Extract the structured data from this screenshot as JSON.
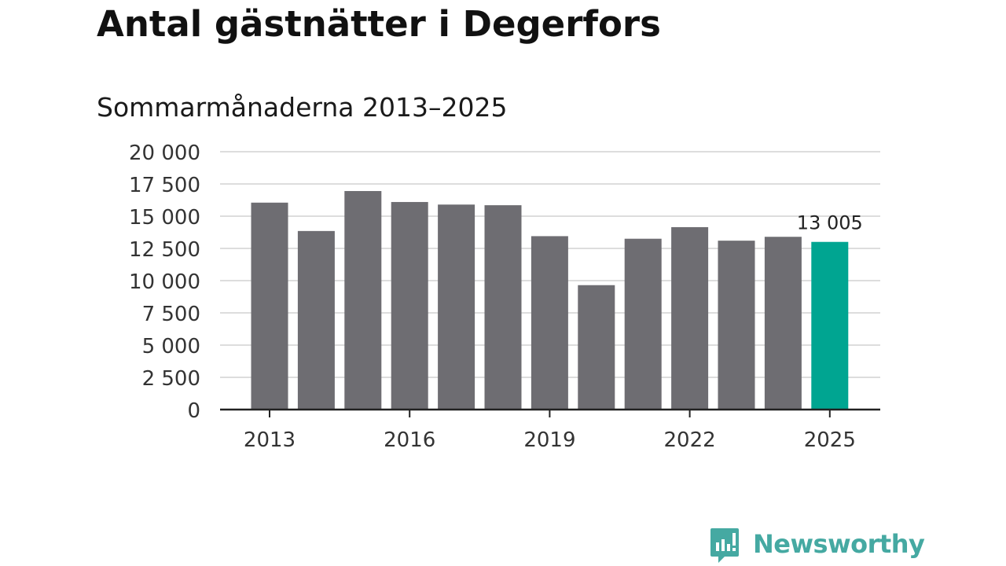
{
  "title": "Antal gästnätter i Degerfors",
  "subtitle": "Sommarmånaderna 2013–2025",
  "brand": {
    "name": "Newsworthy",
    "color": "#45a9a2"
  },
  "chart_data": {
    "type": "bar",
    "categories": [
      "2013",
      "2014",
      "2015",
      "2016",
      "2017",
      "2018",
      "2019",
      "2020",
      "2021",
      "2022",
      "2023",
      "2024",
      "2025"
    ],
    "values": [
      16050,
      13850,
      16950,
      16100,
      15900,
      15850,
      13450,
      9650,
      13250,
      14150,
      13100,
      13400,
      13005
    ],
    "x_tick_labels": [
      "2013",
      "2016",
      "2019",
      "2022",
      "2025"
    ],
    "y_ticks": [
      0,
      2500,
      5000,
      7500,
      10000,
      12500,
      15000,
      17500,
      20000
    ],
    "y_tick_labels": [
      "0",
      "2 500",
      "5 000",
      "7 500",
      "10 000",
      "12 500",
      "15 000",
      "17 500",
      "20 000"
    ],
    "ylim": [
      0,
      20000
    ],
    "grid": true,
    "bar_color": "#6e6d72",
    "highlight_color": "#00a591",
    "highlight_category": "2025",
    "annotation": {
      "category": "2025",
      "text": "13 005"
    }
  }
}
